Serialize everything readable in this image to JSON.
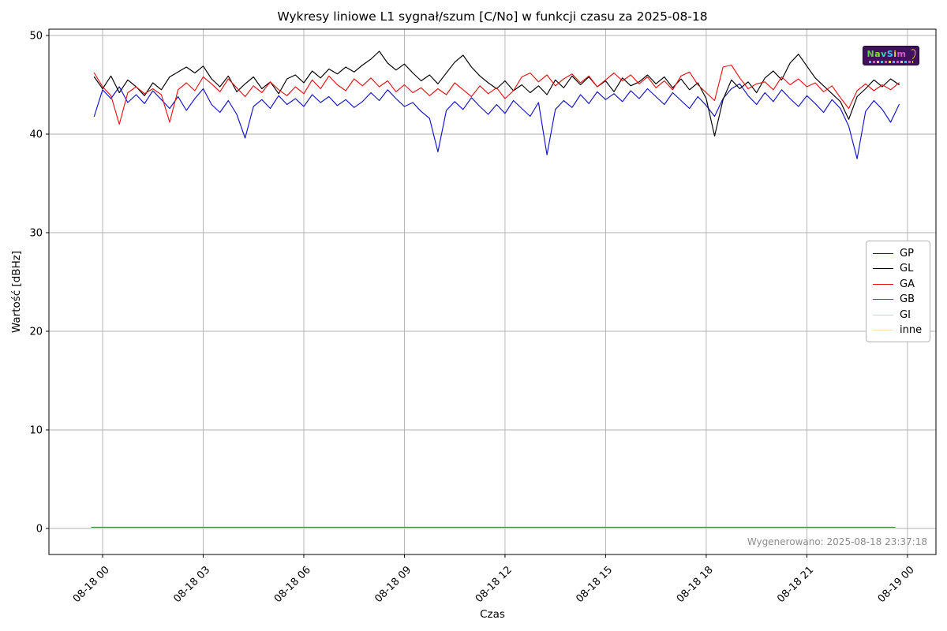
{
  "footer_note": "Wygenerowano: 2025-08-18 23:37:18",
  "logo": {
    "letters": [
      {
        "ch": "N",
        "color": "#5ad54a"
      },
      {
        "ch": "a",
        "color": "#8fd83c"
      },
      {
        "ch": "v",
        "color": "#38d6b0"
      },
      {
        "ch": "S",
        "color": "#35c8e8"
      },
      {
        "ch": "i",
        "color": "#e8d438"
      },
      {
        "ch": "m",
        "color": "#d858c8"
      }
    ]
  },
  "colors": {
    "grid": "#b0b0b0",
    "spine": "#000000",
    "background": "#ffffff",
    "footer_text": "#8c8c8c"
  },
  "chart_data": {
    "type": "line",
    "title": "Wykresy liniowe L1 sygnał/szum [C/No] w funkcji czasu za 2025-08-18",
    "xlabel": "Czas",
    "ylabel": "Wartość [dBHz]",
    "grid": true,
    "legend_position": "right",
    "xlim_hours": [
      -1.6,
      24.85
    ],
    "ylim": [
      -2.64,
      50.64
    ],
    "yticks": [
      0,
      10,
      20,
      30,
      40,
      50
    ],
    "xticks": [
      {
        "hour": 0,
        "label": "08-18 00"
      },
      {
        "hour": 3,
        "label": "08-18 03"
      },
      {
        "hour": 6,
        "label": "08-18 06"
      },
      {
        "hour": 9,
        "label": "08-18 09"
      },
      {
        "hour": 12,
        "label": "08-18 12"
      },
      {
        "hour": 15,
        "label": "08-18 15"
      },
      {
        "hour": 18,
        "label": "08-18 18"
      },
      {
        "hour": 21,
        "label": "08-18 21"
      },
      {
        "hour": 24,
        "label": "08-19 00"
      }
    ],
    "x_start_hour": -0.25,
    "x_step_hours": 0.25,
    "data_t_range": [
      -0.33,
      23.63
    ],
    "series": [
      {
        "name": "GP",
        "color": "#1212c8",
        "values": [
          41.8,
          44.5,
          43.6,
          44.8,
          43.2,
          44.0,
          43.1,
          44.4,
          43.5,
          42.6,
          43.8,
          42.4,
          43.6,
          44.6,
          43.0,
          42.2,
          43.4,
          42.0,
          39.6,
          42.8,
          43.5,
          42.6,
          43.9,
          43.0,
          43.6,
          42.8,
          44.0,
          43.2,
          43.8,
          42.9,
          43.5,
          42.7,
          43.3,
          44.2,
          43.4,
          44.5,
          43.6,
          42.8,
          43.2,
          42.3,
          41.6,
          38.2,
          42.4,
          43.3,
          42.5,
          43.7,
          42.8,
          42.0,
          43.0,
          42.1,
          43.4,
          42.6,
          41.8,
          43.2,
          37.9,
          42.5,
          43.4,
          42.7,
          44.0,
          43.1,
          44.3,
          43.5,
          44.1,
          43.3,
          44.4,
          43.6,
          44.6,
          43.8,
          43.0,
          44.2,
          43.4,
          42.6,
          43.8,
          42.9,
          41.8,
          43.6,
          44.6,
          45.1,
          43.9,
          43.0,
          44.2,
          43.3,
          44.5,
          43.6,
          42.8,
          43.9,
          43.1,
          42.2,
          43.5,
          42.6,
          40.8,
          37.5,
          42.3,
          43.4,
          42.5,
          41.2,
          43.0
        ]
      },
      {
        "name": "GL",
        "color": "#000000",
        "values": [
          45.8,
          44.6,
          45.9,
          44.2,
          45.5,
          44.8,
          43.9,
          45.2,
          44.5,
          45.8,
          46.3,
          46.8,
          46.2,
          46.9,
          45.6,
          44.8,
          45.9,
          44.3,
          45.1,
          45.8,
          44.6,
          45.3,
          44.1,
          45.6,
          46.0,
          45.2,
          46.4,
          45.7,
          46.6,
          46.1,
          46.8,
          46.3,
          47.0,
          47.6,
          48.4,
          47.2,
          46.5,
          47.1,
          46.2,
          45.4,
          46.0,
          45.1,
          46.2,
          47.3,
          48.0,
          46.8,
          45.9,
          45.2,
          44.6,
          45.4,
          44.4,
          45.0,
          44.2,
          44.9,
          44.0,
          45.5,
          44.7,
          45.9,
          45.0,
          45.8,
          44.8,
          45.4,
          44.3,
          45.7,
          44.9,
          45.3,
          46.0,
          45.1,
          45.8,
          44.7,
          45.6,
          44.5,
          45.2,
          43.6,
          39.8,
          43.5,
          45.5,
          44.6,
          45.3,
          44.2,
          45.7,
          46.4,
          45.5,
          47.2,
          48.1,
          46.9,
          45.7,
          44.9,
          44.1,
          43.3,
          41.5,
          43.8,
          44.6,
          45.5,
          44.8,
          45.6,
          45.0
        ]
      },
      {
        "name": "GA",
        "color": "#e31515",
        "values": [
          46.2,
          44.8,
          43.9,
          41.0,
          44.2,
          44.8,
          44.1,
          44.6,
          44.0,
          41.2,
          44.5,
          45.2,
          44.4,
          45.8,
          45.1,
          44.3,
          45.6,
          44.7,
          43.8,
          44.9,
          44.2,
          45.3,
          44.5,
          43.9,
          44.8,
          44.1,
          45.5,
          44.6,
          45.9,
          45.0,
          44.4,
          45.6,
          44.9,
          45.7,
          44.8,
          45.4,
          44.3,
          45.0,
          44.2,
          44.7,
          43.9,
          44.6,
          44.0,
          45.2,
          44.5,
          43.8,
          44.9,
          44.1,
          44.7,
          43.6,
          44.4,
          45.8,
          46.2,
          45.3,
          46.0,
          44.9,
          45.6,
          46.1,
          45.2,
          45.9,
          44.8,
          45.5,
          46.2,
          45.4,
          46.0,
          45.1,
          45.8,
          44.7,
          45.4,
          44.5,
          45.9,
          46.3,
          45.0,
          44.2,
          43.4,
          46.8,
          47.0,
          45.7,
          44.6,
          45.1,
          45.3,
          44.5,
          45.8,
          45.0,
          45.6,
          44.8,
          45.2,
          44.3,
          44.9,
          43.7,
          42.6,
          44.4,
          45.1,
          44.4,
          45.0,
          44.5,
          45.2
        ]
      },
      {
        "name": "GB",
        "color": "#1e7d1e",
        "constant": 0.12,
        "values": []
      },
      {
        "name": "GI",
        "color": "#b9d7ea",
        "constant": null,
        "values": []
      },
      {
        "name": "inne",
        "color": "#fbe0bd",
        "constant": 0.05,
        "values": []
      }
    ]
  }
}
